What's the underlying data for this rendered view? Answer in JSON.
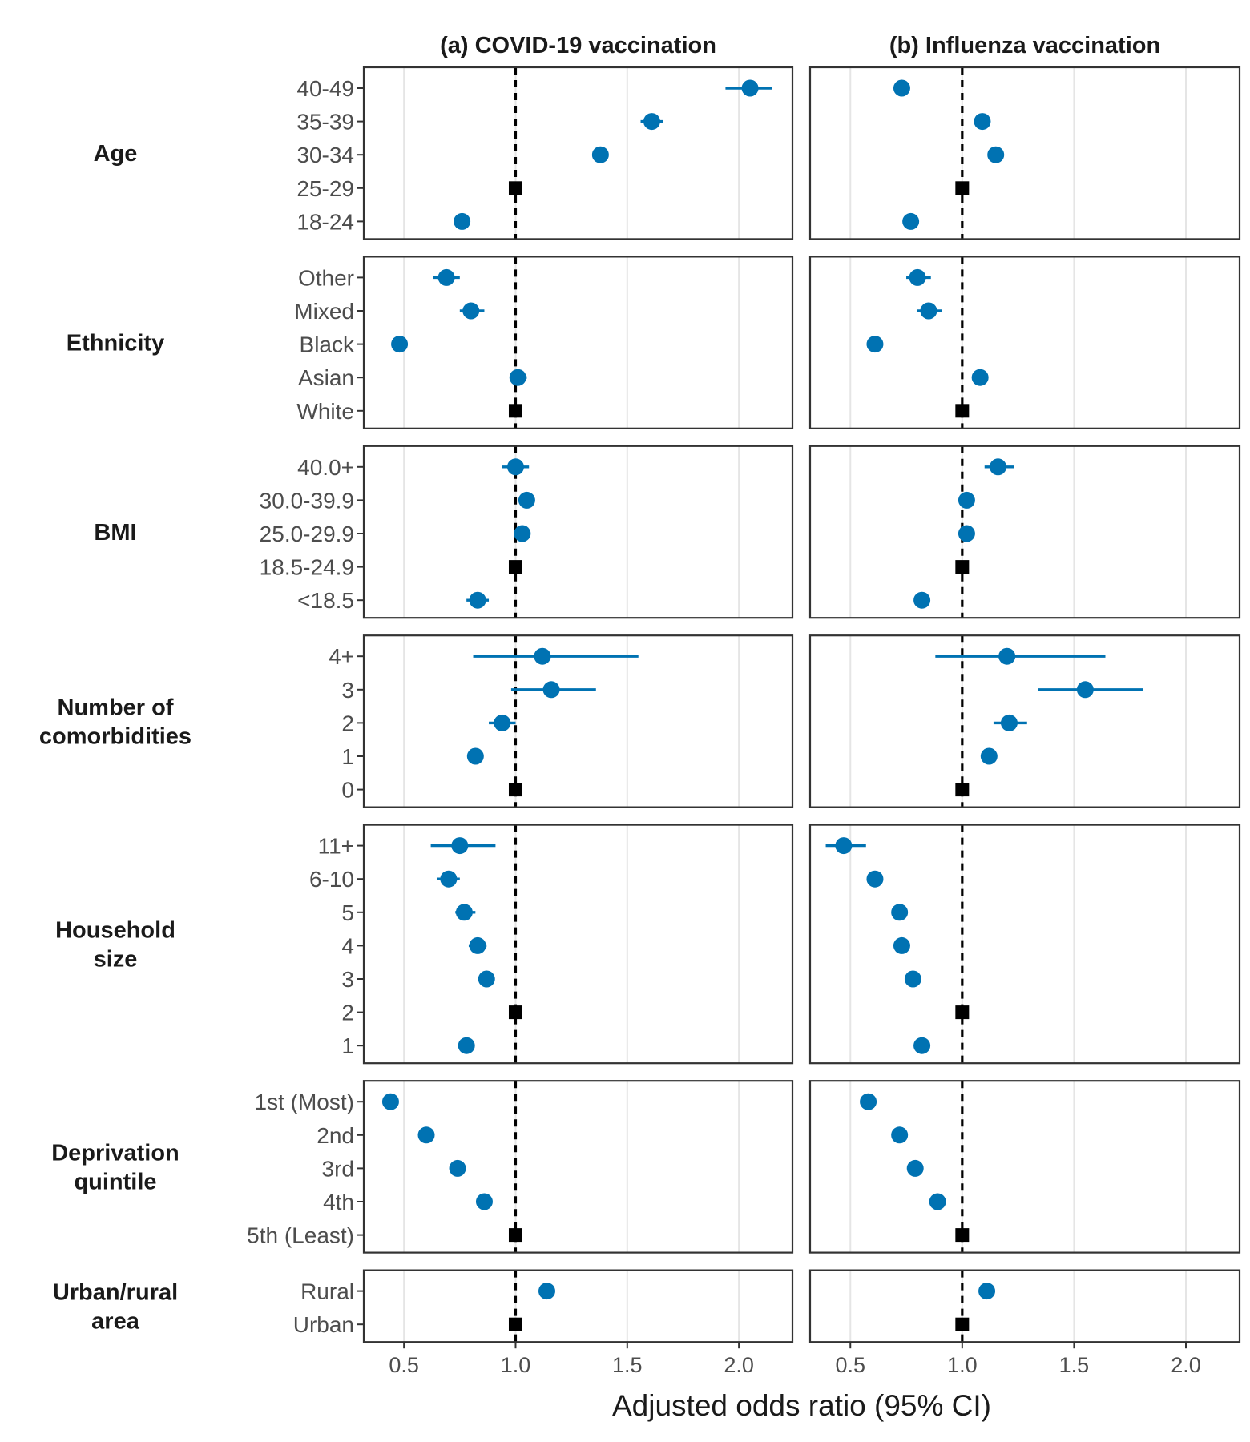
{
  "chart_data": {
    "type": "scatter",
    "xlabel": "Adjusted odds ratio (95% CI)",
    "xlim": [
      0.32,
      2.24
    ],
    "xticks": [
      0.5,
      1.0,
      1.5,
      2.0
    ],
    "xtick_labels": [
      "0.5",
      "1.0",
      "1.5",
      "2.0"
    ],
    "reference_line": 1.0,
    "grid": "vertical",
    "colors": {
      "estimate": "#0072B2",
      "reference": "#000000",
      "panel_border": "#333333",
      "grid": "#e5e5e5"
    },
    "panels": [
      {
        "title": "(a) COVID-19 vaccination"
      },
      {
        "title": "(b) Influenza vaccination"
      }
    ],
    "groups": [
      {
        "label": [
          "Age"
        ],
        "rows": [
          {
            "label": "40-49",
            "a": {
              "est": 2.05,
              "lo": 1.94,
              "hi": 2.15
            },
            "b": {
              "est": 0.73,
              "lo": 0.71,
              "hi": 0.75
            }
          },
          {
            "label": "35-39",
            "a": {
              "est": 1.61,
              "lo": 1.56,
              "hi": 1.66
            },
            "b": {
              "est": 1.09,
              "lo": 1.07,
              "hi": 1.11
            }
          },
          {
            "label": "30-34",
            "a": {
              "est": 1.38,
              "lo": 1.35,
              "hi": 1.41
            },
            "b": {
              "est": 1.15,
              "lo": 1.13,
              "hi": 1.17
            }
          },
          {
            "label": "25-29",
            "ref": true
          },
          {
            "label": "18-24",
            "a": {
              "est": 0.76,
              "lo": 0.74,
              "hi": 0.78
            },
            "b": {
              "est": 0.77,
              "lo": 0.75,
              "hi": 0.79
            }
          }
        ]
      },
      {
        "label": [
          "Ethnicity"
        ],
        "rows": [
          {
            "label": "Other",
            "a": {
              "est": 0.69,
              "lo": 0.63,
              "hi": 0.75
            },
            "b": {
              "est": 0.8,
              "lo": 0.75,
              "hi": 0.86
            }
          },
          {
            "label": "Mixed",
            "a": {
              "est": 0.8,
              "lo": 0.75,
              "hi": 0.86
            },
            "b": {
              "est": 0.85,
              "lo": 0.8,
              "hi": 0.91
            }
          },
          {
            "label": "Black",
            "a": {
              "est": 0.48,
              "lo": 0.46,
              "hi": 0.5
            },
            "b": {
              "est": 0.61,
              "lo": 0.59,
              "hi": 0.63
            }
          },
          {
            "label": "Asian",
            "a": {
              "est": 1.01,
              "lo": 0.98,
              "hi": 1.05
            },
            "b": {
              "est": 1.08,
              "lo": 1.06,
              "hi": 1.1
            }
          },
          {
            "label": "White",
            "ref": true
          }
        ]
      },
      {
        "label": [
          "BMI"
        ],
        "rows": [
          {
            "label": "40.0+",
            "a": {
              "est": 1.0,
              "lo": 0.94,
              "hi": 1.06
            },
            "b": {
              "est": 1.16,
              "lo": 1.1,
              "hi": 1.23
            }
          },
          {
            "label": "30.0-39.9",
            "a": {
              "est": 1.05,
              "lo": 1.03,
              "hi": 1.07
            },
            "b": {
              "est": 1.02,
              "lo": 1.0,
              "hi": 1.04
            }
          },
          {
            "label": "25.0-29.9",
            "a": {
              "est": 1.03,
              "lo": 1.01,
              "hi": 1.05
            },
            "b": {
              "est": 1.02,
              "lo": 1.0,
              "hi": 1.04
            }
          },
          {
            "label": "18.5-24.9",
            "ref": true
          },
          {
            "label": "<18.5",
            "a": {
              "est": 0.83,
              "lo": 0.78,
              "hi": 0.88
            },
            "b": {
              "est": 0.82,
              "lo": 0.79,
              "hi": 0.85
            }
          }
        ]
      },
      {
        "label": [
          "Number of",
          "comorbidities"
        ],
        "rows": [
          {
            "label": "4+",
            "a": {
              "est": 1.12,
              "lo": 0.81,
              "hi": 1.55
            },
            "b": {
              "est": 1.2,
              "lo": 0.88,
              "hi": 1.64
            }
          },
          {
            "label": "3",
            "a": {
              "est": 1.16,
              "lo": 0.98,
              "hi": 1.36
            },
            "b": {
              "est": 1.55,
              "lo": 1.34,
              "hi": 1.81
            }
          },
          {
            "label": "2",
            "a": {
              "est": 0.94,
              "lo": 0.88,
              "hi": 1.0
            },
            "b": {
              "est": 1.21,
              "lo": 1.14,
              "hi": 1.29
            }
          },
          {
            "label": "1",
            "a": {
              "est": 0.82,
              "lo": 0.8,
              "hi": 0.84
            },
            "b": {
              "est": 1.12,
              "lo": 1.1,
              "hi": 1.14
            }
          },
          {
            "label": "0",
            "ref": true
          }
        ]
      },
      {
        "label": [
          "Household",
          "size"
        ],
        "rows": [
          {
            "label": "11+",
            "a": {
              "est": 0.75,
              "lo": 0.62,
              "hi": 0.91
            },
            "b": {
              "est": 0.47,
              "lo": 0.39,
              "hi": 0.57
            }
          },
          {
            "label": "6-10",
            "a": {
              "est": 0.7,
              "lo": 0.65,
              "hi": 0.75
            },
            "b": {
              "est": 0.61,
              "lo": 0.58,
              "hi": 0.64
            }
          },
          {
            "label": "5",
            "a": {
              "est": 0.77,
              "lo": 0.73,
              "hi": 0.82
            },
            "b": {
              "est": 0.72,
              "lo": 0.69,
              "hi": 0.75
            }
          },
          {
            "label": "4",
            "a": {
              "est": 0.83,
              "lo": 0.79,
              "hi": 0.87
            },
            "b": {
              "est": 0.73,
              "lo": 0.71,
              "hi": 0.75
            }
          },
          {
            "label": "3",
            "a": {
              "est": 0.87,
              "lo": 0.84,
              "hi": 0.9
            },
            "b": {
              "est": 0.78,
              "lo": 0.76,
              "hi": 0.8
            }
          },
          {
            "label": "2",
            "ref": true
          },
          {
            "label": "1",
            "a": {
              "est": 0.78,
              "lo": 0.76,
              "hi": 0.8
            },
            "b": {
              "est": 0.82,
              "lo": 0.8,
              "hi": 0.84
            }
          }
        ]
      },
      {
        "label": [
          "Deprivation",
          "quintile"
        ],
        "rows": [
          {
            "label": "1st (Most)",
            "a": {
              "est": 0.44,
              "lo": 0.43,
              "hi": 0.45
            },
            "b": {
              "est": 0.58,
              "lo": 0.57,
              "hi": 0.59
            }
          },
          {
            "label": "2nd",
            "a": {
              "est": 0.6,
              "lo": 0.59,
              "hi": 0.61
            },
            "b": {
              "est": 0.72,
              "lo": 0.71,
              "hi": 0.73
            }
          },
          {
            "label": "3rd",
            "a": {
              "est": 0.74,
              "lo": 0.73,
              "hi": 0.75
            },
            "b": {
              "est": 0.79,
              "lo": 0.78,
              "hi": 0.8
            }
          },
          {
            "label": "4th",
            "a": {
              "est": 0.86,
              "lo": 0.85,
              "hi": 0.87
            },
            "b": {
              "est": 0.89,
              "lo": 0.88,
              "hi": 0.9
            }
          },
          {
            "label": "5th (Least)",
            "ref": true
          }
        ]
      },
      {
        "label": [
          "Urban/rural",
          "area"
        ],
        "rows": [
          {
            "label": "Rural",
            "a": {
              "est": 1.14,
              "lo": 1.12,
              "hi": 1.16
            },
            "b": {
              "est": 1.11,
              "lo": 1.09,
              "hi": 1.13
            }
          },
          {
            "label": "Urban",
            "ref": true
          }
        ]
      }
    ]
  }
}
